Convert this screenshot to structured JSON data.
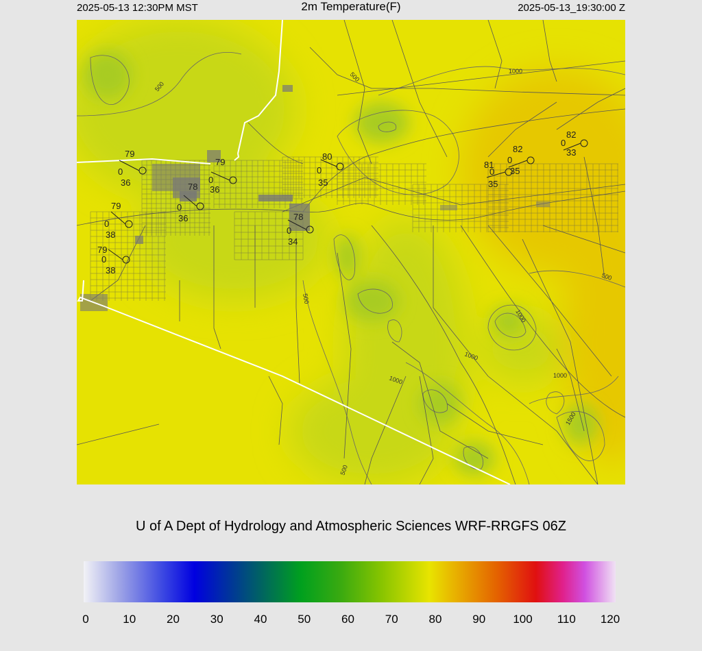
{
  "header": {
    "local_time": "2025-05-13 12:30PM MST",
    "title": "2m Temperature(F)",
    "utc_time": "2025-05-13_19:30:00 Z"
  },
  "credit": "U of A Dept of Hydrology and Atmospheric Sciences WRF-RRGFS 06Z",
  "colorbar": {
    "ticks": [
      "0",
      "10",
      "20",
      "30",
      "40",
      "50",
      "60",
      "70",
      "80",
      "90",
      "100",
      "110",
      "120"
    ],
    "min": 0,
    "max": 120,
    "stops": [
      {
        "v": 0,
        "c": "#f2f2f6"
      },
      {
        "v": 8,
        "c": "#9fa5e6"
      },
      {
        "v": 18,
        "c": "#3a46e2"
      },
      {
        "v": 25,
        "c": "#0000e0"
      },
      {
        "v": 33,
        "c": "#00359a"
      },
      {
        "v": 41,
        "c": "#006a5a"
      },
      {
        "v": 49,
        "c": "#00a01e"
      },
      {
        "v": 58,
        "c": "#3aaa10"
      },
      {
        "v": 67,
        "c": "#86c400"
      },
      {
        "v": 78,
        "c": "#e8e400"
      },
      {
        "v": 83,
        "c": "#e8b800"
      },
      {
        "v": 93,
        "c": "#e46400"
      },
      {
        "v": 102,
        "c": "#e01010"
      },
      {
        "v": 108,
        "c": "#e0208a"
      },
      {
        "v": 113,
        "c": "#d050e0"
      },
      {
        "v": 120,
        "c": "#f0e2f4"
      }
    ]
  },
  "map": {
    "colors": {
      "yellow": "#e6e202",
      "warm": "#e6c802",
      "cool": "#c8d816",
      "coolest": "#a8cc20",
      "roads": "#555555",
      "border": "#ffffff"
    },
    "contour_labels": [
      "500",
      "1000",
      "500",
      "1000",
      "500",
      "1000",
      "1000",
      "1000",
      "1500",
      "500",
      "500"
    ],
    "stations": [
      {
        "id": "stn-1",
        "temp": "79",
        "wind": "0",
        "dew": "36"
      },
      {
        "id": "stn-2",
        "temp": "79",
        "wind": "0",
        "dew": "38"
      },
      {
        "id": "stn-3",
        "temp": "79",
        "wind": "0",
        "dew": "38"
      },
      {
        "id": "stn-4",
        "temp": "78",
        "wind": "0",
        "dew": "36"
      },
      {
        "id": "stn-5",
        "temp": "79",
        "wind": "0",
        "dew": "36"
      },
      {
        "id": "stn-6",
        "temp": "78",
        "wind": "0",
        "dew": "34"
      },
      {
        "id": "stn-7",
        "temp": "80",
        "wind": "0",
        "dew": "35"
      },
      {
        "id": "stn-8",
        "temp": "81",
        "wind": "0",
        "dew": "35"
      },
      {
        "id": "stn-9",
        "temp": "82",
        "wind": "0",
        "dew": "35"
      },
      {
        "id": "stn-10",
        "temp": "82",
        "wind": "0",
        "dew": "33"
      }
    ]
  }
}
